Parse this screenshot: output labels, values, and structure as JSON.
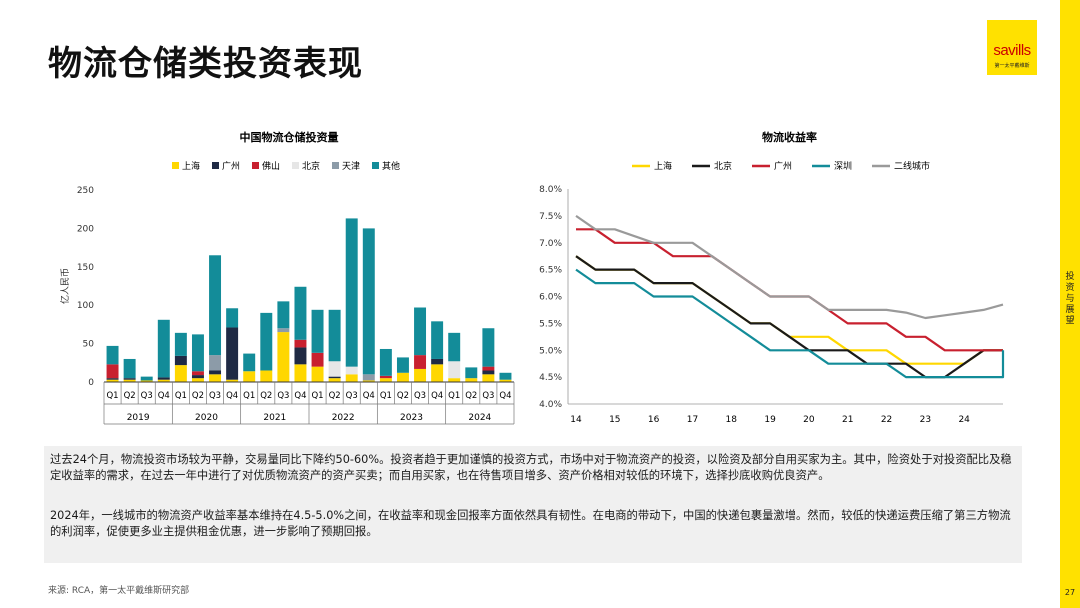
{
  "title": "物流仓储类投资表现",
  "logo": {
    "word": "savills",
    "sub": "第一太平戴维斯"
  },
  "side_tab": "投资与展望",
  "page_number": "27",
  "source": "来源: RCA，第一太平戴维斯研究部",
  "paragraphs": [
    "过去24个月，物流投资市场较为平静，交易量同比下降约50-60%。投资者趋于更加谨慎的投资方式，市场中对于物流资产的投资，以险资及部分自用买家为主。其中，险资处于对投资配比及稳定收益率的需求，在过去一年中进行了对优质物流资产的资产买卖；而自用买家，也在待售项目增多、资产价格相对较低的环境下，选择抄底收购优良资产。",
    "2024年，一线城市的物流资产收益率基本维持在4.5-5.0%之间，在收益率和现金回报率方面依然具有韧性。在电商的带动下，中国的快递包裹量激增。然而，较低的快递运费压缩了第三方物流的利润率，促使更多业主提供租金优惠，进一步影响了预期回报。"
  ],
  "colors": {
    "accent_yellow": "#FFE100",
    "上海": "#FFD700",
    "广州_bar": "#1F2A44",
    "佛山": "#C8202F",
    "北京_bar": "#E6E6E6",
    "天津": "#8C9BA8",
    "其他": "#138C99",
    "北京_line": "#1a1a1a",
    "广州_line": "#C8202F",
    "深圳": "#138C99",
    "二线城市": "#9A9A9A"
  },
  "chart_data": [
    {
      "type": "bar",
      "stacked": true,
      "title": "中国物流仓储投资量",
      "ylabel": "亿人民币",
      "ylim": [
        0,
        250
      ],
      "yticks": [
        0,
        50,
        100,
        150,
        200,
        250
      ],
      "categories": [
        "Q1",
        "Q2",
        "Q3",
        "Q4",
        "Q1",
        "Q2",
        "Q3",
        "Q4",
        "Q1",
        "Q2",
        "Q3",
        "Q4",
        "Q1",
        "Q2",
        "Q3",
        "Q4",
        "Q1",
        "Q2",
        "Q3",
        "Q4",
        "Q1",
        "Q2",
        "Q3",
        "Q4"
      ],
      "years": [
        "2019",
        "2020",
        "2021",
        "2022",
        "2023",
        "2024"
      ],
      "legend_position": "top",
      "series": [
        {
          "name": "上海",
          "color": "#FFD700",
          "values": [
            3,
            3,
            2,
            3,
            22,
            5,
            10,
            3,
            14,
            15,
            65,
            23,
            20,
            5,
            10,
            2,
            5,
            12,
            17,
            23,
            5,
            5,
            10,
            3
          ]
        },
        {
          "name": "广州",
          "color": "#1F2A44",
          "values": [
            2,
            2,
            0,
            3,
            12,
            4,
            5,
            68,
            0,
            0,
            0,
            22,
            0,
            2,
            0,
            0,
            0,
            0,
            0,
            7,
            0,
            0,
            5,
            0
          ]
        },
        {
          "name": "佛山",
          "color": "#C8202F",
          "values": [
            18,
            0,
            0,
            0,
            0,
            5,
            0,
            0,
            0,
            0,
            0,
            10,
            18,
            0,
            0,
            0,
            3,
            0,
            18,
            0,
            0,
            0,
            5,
            0
          ]
        },
        {
          "name": "北京",
          "color": "#E6E6E6",
          "values": [
            0,
            0,
            0,
            0,
            0,
            0,
            0,
            0,
            0,
            0,
            0,
            0,
            0,
            20,
            10,
            0,
            0,
            0,
            0,
            0,
            22,
            0,
            0,
            0
          ]
        },
        {
          "name": "天津",
          "color": "#8C9BA8",
          "values": [
            0,
            0,
            0,
            0,
            0,
            0,
            20,
            0,
            0,
            0,
            5,
            0,
            0,
            0,
            0,
            8,
            0,
            0,
            0,
            0,
            0,
            0,
            0,
            0
          ]
        },
        {
          "name": "其他",
          "color": "#138C99",
          "values": [
            24,
            25,
            5,
            75,
            30,
            48,
            130,
            25,
            23,
            75,
            35,
            69,
            56,
            67,
            193,
            190,
            35,
            20,
            62,
            49,
            37,
            14,
            50,
            9
          ]
        }
      ]
    },
    {
      "type": "line",
      "title": "物流收益率",
      "ylim": [
        4.0,
        8.0
      ],
      "yticks": [
        "8.0%",
        "7.5%",
        "7.0%",
        "6.5%",
        "6.0%",
        "5.5%",
        "5.0%",
        "4.5%",
        "4.0%"
      ],
      "xticks": [
        "14",
        "15",
        "16",
        "17",
        "18",
        "19",
        "20",
        "21",
        "22",
        "23",
        "24"
      ],
      "xlim": [
        14,
        25
      ],
      "legend_position": "top",
      "series": [
        {
          "name": "上海",
          "color": "#FFD700",
          "points": [
            [
              14,
              6.75
            ],
            [
              14.5,
              6.5
            ],
            [
              15.5,
              6.5
            ],
            [
              16,
              6.25
            ],
            [
              17,
              6.25
            ],
            [
              17.5,
              6.0
            ],
            [
              18,
              5.75
            ],
            [
              18.5,
              5.5
            ],
            [
              19,
              5.5
            ],
            [
              19.5,
              5.25
            ],
            [
              20.5,
              5.25
            ],
            [
              21,
              5.0
            ],
            [
              22,
              5.0
            ],
            [
              22.5,
              4.75
            ],
            [
              23,
              4.75
            ],
            [
              24,
              4.75
            ],
            [
              24.5,
              5.0
            ],
            [
              25,
              5.0
            ]
          ]
        },
        {
          "name": "北京",
          "color": "#1a1a1a",
          "points": [
            [
              14,
              6.75
            ],
            [
              14.5,
              6.5
            ],
            [
              15.5,
              6.5
            ],
            [
              16,
              6.25
            ],
            [
              17,
              6.25
            ],
            [
              17.5,
              6.0
            ],
            [
              18,
              5.75
            ],
            [
              18.5,
              5.5
            ],
            [
              19,
              5.5
            ],
            [
              19.5,
              5.25
            ],
            [
              20,
              5.0
            ],
            [
              21,
              5.0
            ],
            [
              21.5,
              4.75
            ],
            [
              22.5,
              4.75
            ],
            [
              23,
              4.5
            ],
            [
              23.5,
              4.5
            ],
            [
              24,
              4.75
            ],
            [
              24.5,
              5.0
            ],
            [
              25,
              5.0
            ]
          ]
        },
        {
          "name": "广州",
          "color": "#C8202F",
          "points": [
            [
              14,
              7.25
            ],
            [
              14.5,
              7.25
            ],
            [
              15,
              7.0
            ],
            [
              16,
              7.0
            ],
            [
              16.5,
              6.75
            ],
            [
              17.5,
              6.75
            ],
            [
              18,
              6.5
            ],
            [
              18.5,
              6.25
            ],
            [
              19,
              6.0
            ],
            [
              20,
              6.0
            ],
            [
              20.5,
              5.75
            ],
            [
              21,
              5.5
            ],
            [
              22,
              5.5
            ],
            [
              22.5,
              5.25
            ],
            [
              23,
              5.25
            ],
            [
              23.5,
              5.0
            ],
            [
              25,
              5.0
            ]
          ]
        },
        {
          "name": "深圳",
          "color": "#138C99",
          "points": [
            [
              14,
              6.5
            ],
            [
              14.5,
              6.25
            ],
            [
              15.5,
              6.25
            ],
            [
              16,
              6.0
            ],
            [
              17,
              6.0
            ],
            [
              17.5,
              5.75
            ],
            [
              18,
              5.5
            ],
            [
              18.5,
              5.25
            ],
            [
              19,
              5.0
            ],
            [
              20,
              5.0
            ],
            [
              20.5,
              4.75
            ],
            [
              22,
              4.75
            ],
            [
              22.5,
              4.5
            ],
            [
              25,
              4.5
            ],
            [
              25,
              5.0
            ]
          ]
        },
        {
          "name": "二线城市",
          "color": "#9A9A9A",
          "points": [
            [
              14,
              7.5
            ],
            [
              14.5,
              7.25
            ],
            [
              15,
              7.25
            ],
            [
              16,
              7.0
            ],
            [
              17,
              7.0
            ],
            [
              17.5,
              6.75
            ],
            [
              18,
              6.5
            ],
            [
              18.5,
              6.25
            ],
            [
              19,
              6.0
            ],
            [
              20,
              6.0
            ],
            [
              20.5,
              5.75
            ],
            [
              22,
              5.75
            ],
            [
              22.5,
              5.7
            ],
            [
              23,
              5.6
            ],
            [
              23.5,
              5.65
            ],
            [
              24,
              5.7
            ],
            [
              24.5,
              5.75
            ],
            [
              25,
              5.85
            ]
          ]
        }
      ]
    }
  ]
}
